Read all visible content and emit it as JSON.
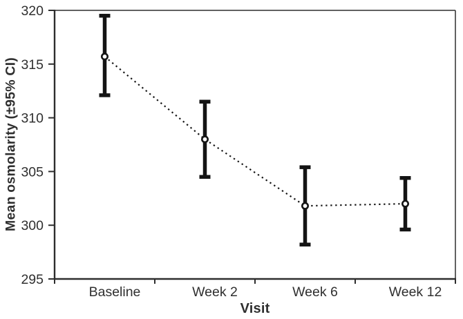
{
  "chart_data": {
    "type": "line",
    "title": "",
    "xlabel": "Visit",
    "ylabel": "Mean osmolarity (±95% CI)",
    "categories": [
      "Baseline",
      "Week 2",
      "Week 6",
      "Week 12"
    ],
    "series": [
      {
        "values": [
          315.7,
          308.0,
          301.8,
          302.0
        ],
        "ci_low": [
          312.1,
          304.5,
          298.2,
          299.6
        ],
        "ci_high": [
          319.5,
          311.5,
          305.4,
          304.4
        ]
      }
    ],
    "ylim": [
      295,
      320
    ],
    "yticks": [
      295,
      300,
      305,
      310,
      315,
      320
    ],
    "grid": false,
    "legend": "none",
    "line_style": "dotted",
    "marker": "open-circle",
    "error_bars": "±95% CI",
    "colors": {
      "data": "#141414",
      "axis": "#2d2d2d",
      "text": "#2f2f2f",
      "marker_fill": "#ffffff",
      "background": "#ffffff"
    }
  }
}
